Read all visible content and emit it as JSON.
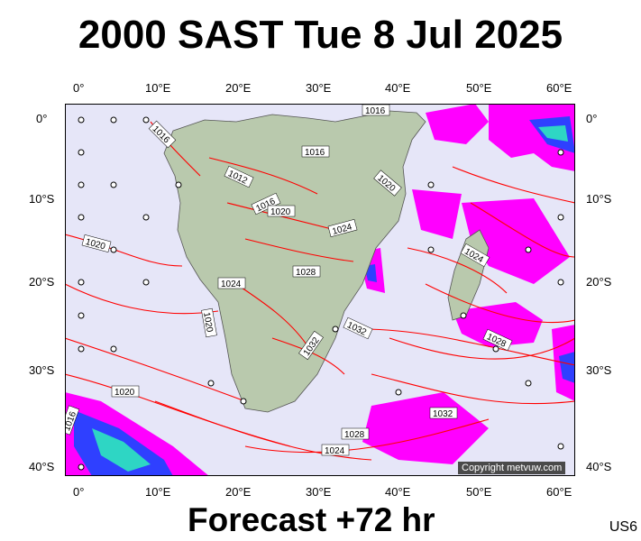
{
  "header": {
    "title": "2000 SAST Tue 8 Jul 2025"
  },
  "footer": {
    "forecast": "Forecast +72 hr",
    "code": "US6"
  },
  "copyright": "Copyright metvuw.com",
  "axes": {
    "lon_labels": [
      "0°",
      "10°E",
      "20°E",
      "30°E",
      "40°E",
      "50°E",
      "60°E"
    ],
    "lat_labels": [
      "0°",
      "10°S",
      "20°S",
      "30°S",
      "40°S"
    ]
  },
  "isobar_labels": [
    "1016",
    "1016",
    "1016",
    "1012",
    "1016",
    "1020",
    "1020",
    "1024",
    "1024",
    "1020",
    "1028",
    "1024",
    "1032",
    "1032",
    "1028",
    "1024",
    "1028",
    "1032",
    "1020",
    "1020",
    "1016"
  ],
  "colors": {
    "ocean": "#e6e6f8",
    "land": "#b9c9ad",
    "isobar": "#ff0000",
    "rain": "#ff00ff",
    "rain_heavy": "#2f40ff",
    "rain_core": "#2ed6c4"
  }
}
